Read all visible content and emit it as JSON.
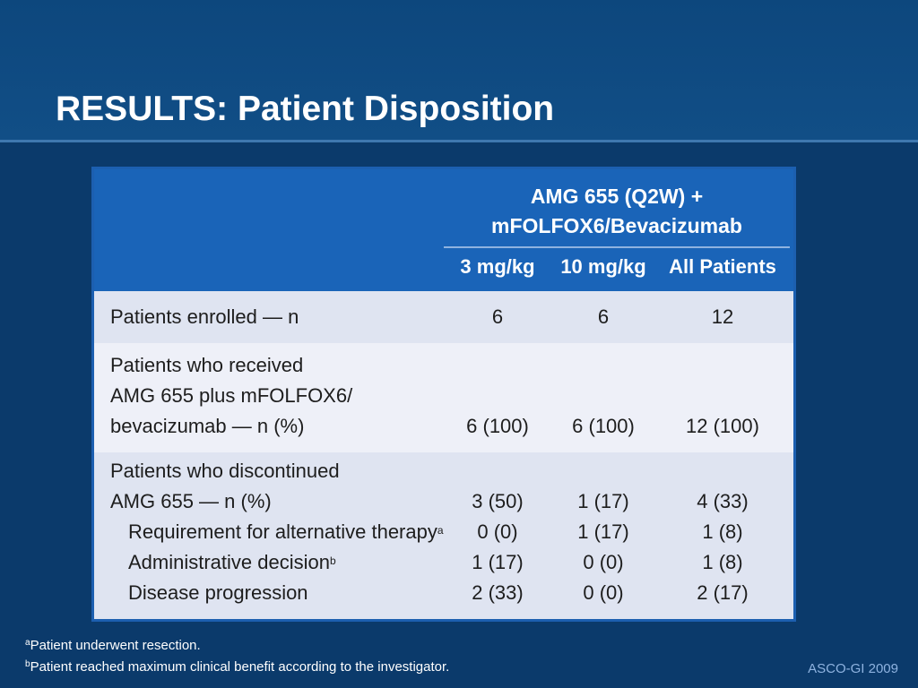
{
  "slide": {
    "title": "RESULTS: Patient Disposition",
    "credit": "ASCO-GI 2009"
  },
  "table": {
    "group_header_line1": "AMG 655 (Q2W) +",
    "group_header_line2": "mFOLFOX6/Bevacizumab",
    "columns": [
      "3 mg/kg",
      "10 mg/kg",
      "All Patients"
    ],
    "rows": [
      {
        "label": "Patients enrolled — n",
        "values": [
          "6",
          "6",
          "12"
        ]
      },
      {
        "label_lines": [
          "Patients who received",
          "AMG 655 plus mFOLFOX6/",
          "bevacizumab — n (%)"
        ],
        "values": [
          "6 (100)",
          "6 (100)",
          "12 (100)"
        ]
      },
      {
        "label_lines": [
          "Patients who discontinued",
          "AMG 655 — n (%)"
        ],
        "values": [
          "3 (50)",
          "1 (17)",
          "4 (33)"
        ]
      },
      {
        "label": "Requirement for alternative therapy",
        "sup": "a",
        "values": [
          "0 (0)",
          "1 (17)",
          "1 (8)"
        ]
      },
      {
        "label": "Administrative decision",
        "sup": "b",
        "values": [
          "1 (17)",
          "0 (0)",
          "1 (8)"
        ]
      },
      {
        "label": "Disease progression",
        "values": [
          "2 (33)",
          "0 (0)",
          "2 (17)"
        ]
      }
    ]
  },
  "footnotes": [
    {
      "mark": "a",
      "text": "Patient underwent resection."
    },
    {
      "mark": "b",
      "text": "Patient reached maximum clinical benefit according to the investigator."
    }
  ]
}
